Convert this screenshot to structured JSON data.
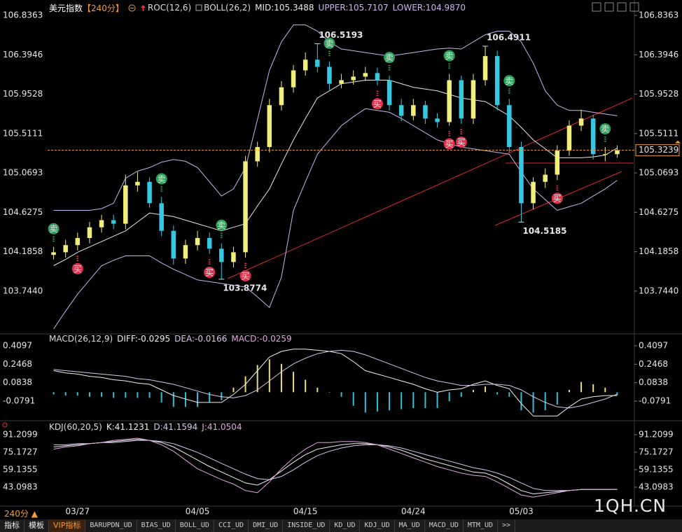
{
  "chart_data": [
    {
      "type": "candlestick",
      "title": "美元指数",
      "period": "【240分】",
      "indicator": "ROC(12,6)",
      "categories": [
        null,
        null,
        "03/27",
        null,
        null,
        null,
        null,
        null,
        null,
        null,
        null,
        null,
        "04/05",
        null,
        null,
        null,
        null,
        null,
        null,
        null,
        null,
        "04/15",
        null,
        null,
        null,
        null,
        null,
        null,
        null,
        null,
        "04/24",
        null,
        null,
        null,
        null,
        null,
        null,
        null,
        null,
        "05/03",
        null,
        null,
        null,
        null,
        null,
        null,
        null,
        null
      ],
      "open": [
        104.15,
        104.18,
        104.26,
        104.34,
        104.46,
        104.54,
        104.5,
        104.93,
        104.97,
        104.73,
        104.42,
        104.11,
        104.26,
        104.34,
        104.22,
        104.07,
        104.18,
        105.2,
        105.36,
        105.83,
        106.03,
        106.22,
        106.34,
        106.26,
        106.07,
        106.11,
        106.15,
        106.19,
        106.11,
        105.83,
        105.71,
        105.83,
        105.68,
        105.64,
        106.11,
        105.68,
        106.11,
        106.38,
        105.83,
        105.36,
        104.73,
        104.97,
        105.05,
        105.32,
        105.6,
        105.68,
        105.28,
        105.28
      ],
      "high": [
        104.24,
        104.32,
        104.4,
        104.52,
        104.6,
        104.6,
        105.05,
        105.08,
        105.02,
        104.8,
        104.48,
        104.32,
        104.42,
        104.4,
        104.28,
        104.24,
        105.26,
        105.42,
        105.9,
        106.1,
        106.28,
        106.42,
        106.5193,
        106.32,
        106.18,
        106.22,
        106.26,
        106.25,
        106.16,
        105.9,
        105.9,
        105.88,
        105.74,
        106.18,
        106.16,
        106.18,
        106.4911,
        106.44,
        105.9,
        105.42,
        105.02,
        105.12,
        105.38,
        105.66,
        105.78,
        105.72,
        105.36,
        105.38
      ],
      "low": [
        104.1,
        104.12,
        104.2,
        104.28,
        104.4,
        104.44,
        104.44,
        104.86,
        104.68,
        104.36,
        104.04,
        104.05,
        104.2,
        104.16,
        103.8774,
        104.01,
        104.12,
        105.14,
        105.3,
        105.77,
        105.97,
        106.16,
        106.2,
        106.0,
        106.02,
        106.06,
        106.1,
        106.05,
        105.77,
        105.65,
        105.66,
        105.62,
        105.58,
        105.6,
        105.62,
        105.62,
        106.05,
        105.77,
        105.3,
        104.5185,
        104.66,
        104.9,
        104.99,
        105.26,
        105.54,
        105.22,
        105.2,
        105.24
      ],
      "close": [
        104.18,
        104.26,
        104.34,
        104.46,
        104.54,
        104.5,
        104.93,
        104.97,
        104.73,
        104.42,
        104.11,
        104.26,
        104.34,
        104.22,
        104.07,
        104.18,
        105.2,
        105.36,
        105.83,
        106.03,
        106.22,
        106.34,
        106.26,
        106.07,
        106.11,
        106.15,
        106.19,
        106.11,
        105.83,
        105.71,
        105.83,
        105.68,
        105.64,
        106.11,
        105.68,
        106.11,
        106.38,
        105.83,
        105.36,
        104.73,
        104.97,
        105.05,
        105.32,
        105.6,
        105.68,
        105.28,
        105.28,
        105.3239
      ],
      "up_color": "#f2ee7a",
      "down_color": "#35c8e0",
      "last_price": 105.3239,
      "last_price_color": "#f0a030",
      "overlay": {
        "label": "BOLL(26,2)",
        "series": [
          {
            "name": "MID:105.3488",
            "color": "#e8e8e8",
            "values": [
              104.03,
              104.1,
              104.18,
              104.24,
              104.3,
              104.36,
              104.42,
              104.52,
              104.62,
              104.6,
              104.58,
              104.54,
              104.5,
              104.46,
              104.42,
              104.46,
              104.5,
              104.7,
              104.89,
              105.17,
              105.44,
              105.68,
              105.91,
              105.99,
              106.07,
              106.09,
              106.11,
              106.11,
              106.11,
              106.07,
              106.03,
              106.01,
              105.99,
              105.95,
              105.91,
              105.89,
              105.87,
              105.79,
              105.71,
              105.58,
              105.44,
              105.34,
              105.24,
              105.24,
              105.24,
              105.25,
              105.27,
              105.3488
            ]
          },
          {
            "name": "UPPER:105.7107",
            "color": "#c9b6ee",
            "values": [
              104.65,
              104.65,
              104.65,
              104.65,
              104.67,
              104.73,
              105.01,
              105.09,
              105.13,
              105.19,
              105.22,
              105.2,
              105.13,
              104.97,
              104.81,
              104.89,
              105.13,
              105.67,
              106.22,
              106.54,
              106.73,
              106.73,
              106.66,
              106.54,
              106.46,
              106.44,
              106.42,
              106.4,
              106.38,
              106.4,
              106.42,
              106.44,
              106.46,
              106.47,
              106.46,
              106.54,
              106.62,
              106.66,
              106.66,
              106.54,
              106.3,
              105.99,
              105.83,
              105.77,
              105.77,
              105.75,
              105.73,
              105.7107
            ]
          },
          {
            "name": "LOWER:104.9870",
            "color": "#c9b6ee",
            "values": [
              103.32,
              103.52,
              103.71,
              103.87,
              104.03,
              104.09,
              104.14,
              104.14,
              104.14,
              104.06,
              103.99,
              103.93,
              103.87,
              103.85,
              103.83,
              103.81,
              103.79,
              103.68,
              103.56,
              103.9,
              104.65,
              104.97,
              105.28,
              105.44,
              105.6,
              105.7,
              105.79,
              105.77,
              105.75,
              105.68,
              105.6,
              105.52,
              105.44,
              105.4,
              105.36,
              105.34,
              105.32,
              105.3,
              105.28,
              105.08,
              104.89,
              104.77,
              104.65,
              104.69,
              104.73,
              104.81,
              104.89,
              104.987
            ]
          }
        ]
      },
      "signals": [
        {
          "label": "卖",
          "index": 0,
          "color": "#2e9e5b",
          "position": "above"
        },
        {
          "label": "买",
          "index": 2,
          "color": "#e3304a",
          "position": "below"
        },
        {
          "label": "卖",
          "index": 9,
          "color": "#2e9e5b",
          "position": "above"
        },
        {
          "label": "买",
          "index": 13,
          "color": "#e3304a",
          "position": "below"
        },
        {
          "label": "卖",
          "index": 14,
          "color": "#2e9e5b",
          "position": "above"
        },
        {
          "label": "买",
          "index": 16,
          "color": "#e3304a",
          "position": "below"
        },
        {
          "label": "卖",
          "index": 23,
          "color": "#2e9e5b",
          "position": "above"
        },
        {
          "label": "买",
          "index": 27,
          "color": "#e3304a",
          "position": "below"
        },
        {
          "label": "卖",
          "index": 28,
          "color": "#2e9e5b",
          "position": "above"
        },
        {
          "label": "卖",
          "index": 33,
          "color": "#2e9e5b",
          "position": "above"
        },
        {
          "label": "买",
          "index": 33,
          "color": "#e3304a",
          "position": "below"
        },
        {
          "label": "买",
          "index": 34,
          "color": "#e3304a",
          "position": "below"
        },
        {
          "label": "卖",
          "index": 38,
          "color": "#2e9e5b",
          "position": "above"
        },
        {
          "label": "买",
          "index": 42,
          "color": "#e3304a",
          "position": "below"
        },
        {
          "label": "卖",
          "index": 46,
          "color": "#2e9e5b",
          "position": "above"
        }
      ],
      "ylim": [
        103.28,
        106.97
      ],
      "yticks": [
        106.8363,
        106.3946,
        105.9528,
        105.5111,
        105.0693,
        104.6275,
        104.1858,
        {
          "value": 103.744,
          "label": "103.7440"
        }
      ]
    },
    {
      "type": "macd",
      "title": "MACD(26,12,9)",
      "ylim": [
        -0.233,
        0.496
      ],
      "yticks": [
        0.4097,
        0.2468,
        0.0838,
        -0.0791
      ],
      "series": [
        {
          "name": "DIFF:-0.0295",
          "color": "#f0f0f0",
          "type": "line",
          "values": [
            0.19,
            0.17,
            0.16,
            0.14,
            0.13,
            0.11,
            0.1,
            0.08,
            0.07,
            0.02,
            -0.03,
            -0.06,
            -0.09,
            -0.09,
            -0.09,
            -0.02,
            0.07,
            0.19,
            0.31,
            0.36,
            0.38,
            0.38,
            0.37,
            0.36,
            0.34,
            0.27,
            0.19,
            0.16,
            0.13,
            0.1,
            0.07,
            0.03,
            0.0,
            0.02,
            0.03,
            0.07,
            0.1,
            0.06,
            0.03,
            -0.1,
            -0.21,
            -0.21,
            -0.21,
            -0.13,
            -0.06,
            -0.04,
            -0.03,
            -0.0295
          ]
        },
        {
          "name": "DEA:-0.0166",
          "color": "#d8c8f0",
          "type": "line",
          "values": [
            0.2,
            0.19,
            0.18,
            0.17,
            0.16,
            0.15,
            0.14,
            0.12,
            0.11,
            0.09,
            0.07,
            0.04,
            0.01,
            -0.02,
            -0.04,
            -0.05,
            -0.03,
            0.02,
            0.1,
            0.18,
            0.25,
            0.3,
            0.34,
            0.36,
            0.37,
            0.36,
            0.33,
            0.29,
            0.25,
            0.21,
            0.17,
            0.13,
            0.1,
            0.08,
            0.06,
            0.06,
            0.07,
            0.07,
            0.06,
            0.02,
            -0.04,
            -0.09,
            -0.13,
            -0.14,
            -0.12,
            -0.09,
            -0.06,
            -0.0166
          ]
        },
        {
          "name": "MACD:-0.0259",
          "color": "#e4a6e0",
          "type": "bar",
          "up_color": "#e8e07a",
          "down_color": "#35c0d8",
          "values": [
            -0.02,
            -0.03,
            -0.03,
            -0.04,
            -0.04,
            -0.05,
            -0.05,
            -0.05,
            -0.05,
            -0.09,
            -0.13,
            -0.13,
            -0.13,
            -0.09,
            -0.07,
            0.04,
            0.14,
            0.24,
            0.29,
            0.25,
            0.18,
            0.11,
            0.04,
            0.0,
            -0.04,
            -0.12,
            -0.18,
            -0.17,
            -0.16,
            -0.15,
            -0.14,
            -0.14,
            -0.14,
            -0.08,
            -0.04,
            0.02,
            0.05,
            -0.02,
            -0.04,
            -0.16,
            -0.18,
            -0.16,
            -0.11,
            0.02,
            0.09,
            0.07,
            0.04,
            -0.0259
          ]
        }
      ]
    },
    {
      "type": "line",
      "title": "KDJ(60,20,5)",
      "ylim": [
        26.42,
        101.47
      ],
      "yticks": [
        91.2099,
        75.1727,
        59.1355,
        43.0983
      ],
      "series": [
        {
          "name": "K:41.1231",
          "color": "#f0f0f0",
          "values": [
            80,
            81,
            82,
            83,
            84,
            85,
            86,
            87,
            86,
            84,
            80,
            74,
            68,
            62,
            57,
            52,
            47,
            45,
            50,
            58,
            66,
            73,
            78,
            80,
            82,
            83,
            83,
            82,
            80,
            77,
            73,
            69,
            66,
            63,
            60,
            57,
            56,
            52,
            46,
            40,
            37,
            38,
            39,
            40,
            41,
            41,
            41,
            41.1231
          ]
        },
        {
          "name": "D:41.1594",
          "color": "#d8c8f0",
          "values": [
            82,
            82,
            83,
            83,
            84,
            84,
            85,
            86,
            86,
            85,
            83,
            79,
            75,
            70,
            65,
            60,
            55,
            51,
            50,
            53,
            59,
            66,
            72,
            76,
            79,
            81,
            82,
            82,
            81,
            79,
            76,
            73,
            70,
            67,
            64,
            61,
            59,
            56,
            52,
            47,
            42,
            40,
            40,
            40,
            41,
            41,
            41,
            41.1594
          ]
        },
        {
          "name": "J:41.0504",
          "color": "#e4a6e0",
          "values": [
            78,
            80,
            81,
            83,
            84,
            86,
            87,
            88,
            86,
            82,
            76,
            68,
            60,
            55,
            50,
            46,
            40,
            38,
            48,
            60,
            70,
            78,
            84,
            84,
            85,
            85,
            84,
            82,
            78,
            74,
            70,
            66,
            62,
            59,
            56,
            54,
            53,
            48,
            42,
            36,
            34,
            36,
            38,
            40,
            41,
            41,
            41,
            41.0504
          ]
        }
      ]
    }
  ],
  "period_button": "240分 ▲",
  "watermark": "1QH.CN",
  "toolbar": [
    "指标",
    "模板",
    "VIP指标",
    "BARUPDN_UD",
    "BIAS_UD",
    "BOLL_UD",
    "CCI_UD",
    "DMI_UD",
    "INSIDE_UD",
    "KD_UD",
    "KDJ_UD",
    "MA_UD",
    "MACD_UD",
    "MTM_UD",
    ">>"
  ]
}
